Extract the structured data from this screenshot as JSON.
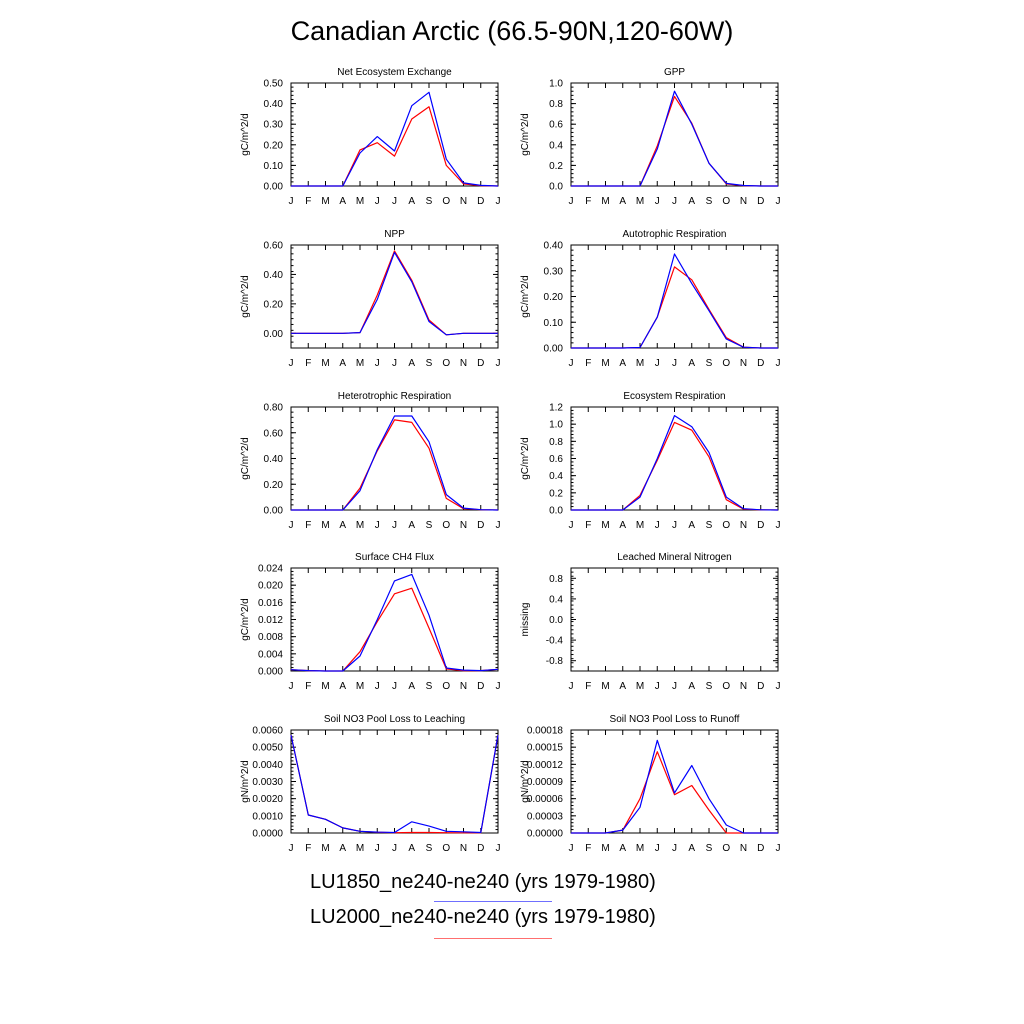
{
  "title": "Canadian Arctic (66.5-90N,120-60W)",
  "months": [
    "J",
    "F",
    "M",
    "A",
    "M",
    "J",
    "J",
    "A",
    "S",
    "O",
    "N",
    "D",
    "J"
  ],
  "colors": {
    "LU1850": "#0000ff",
    "LU2000": "#ff0000"
  },
  "legend": [
    {
      "label": "LU1850_ne240-ne240 (yrs 1979-1980)",
      "color": "#0000ff"
    },
    {
      "label": "LU2000_ne240-ne240 (yrs 1979-1980)",
      "color": "#ff0000"
    }
  ],
  "chart_data": [
    {
      "type": "line",
      "title": "Net Ecosystem Exchange",
      "ylabel": "gC/m^2/d",
      "ylim": [
        0,
        0.5
      ],
      "yticks": [
        "0.00",
        "0.10",
        "0.20",
        "0.30",
        "0.40",
        "0.50"
      ],
      "series": [
        {
          "name": "LU1850_ne240-ne240 (yrs 1979-1980)",
          "values": [
            0,
            0,
            0,
            0,
            0.16,
            0.24,
            0.17,
            0.39,
            0.455,
            0.13,
            0.015,
            0.003,
            0
          ]
        },
        {
          "name": "LU2000_ne240-ne240 (yrs 1979-1980)",
          "values": [
            0,
            0,
            0,
            0,
            0.175,
            0.21,
            0.145,
            0.325,
            0.385,
            0.1,
            0.01,
            0.002,
            0
          ]
        }
      ]
    },
    {
      "type": "line",
      "title": "GPP",
      "ylabel": "gC/m^2/d",
      "ylim": [
        0,
        1.0
      ],
      "yticks": [
        "0.0",
        "0.2",
        "0.4",
        "0.6",
        "0.8",
        "1.0"
      ],
      "series": [
        {
          "name": "LU1850_ne240-ne240 (yrs 1979-1980)",
          "values": [
            0,
            0,
            0,
            0,
            0,
            0.36,
            0.92,
            0.6,
            0.22,
            0.025,
            0.005,
            0,
            0
          ]
        },
        {
          "name": "LU2000_ne240-ne240 (yrs 1979-1980)",
          "values": [
            0,
            0,
            0,
            0,
            0,
            0.39,
            0.87,
            0.61,
            0.22,
            0.02,
            0.004,
            0,
            0
          ]
        }
      ]
    },
    {
      "type": "line",
      "title": "NPP",
      "ylabel": "gC/m^2/d",
      "ylim": [
        -0.1,
        0.6
      ],
      "yticks": [
        "0.00",
        "0.20",
        "0.40",
        "0.60"
      ],
      "ytick_values": [
        0,
        0.2,
        0.4,
        0.6
      ],
      "series": [
        {
          "name": "LU1850_ne240-ne240 (yrs 1979-1980)",
          "values": [
            0,
            0,
            0,
            0,
            0.005,
            0.23,
            0.55,
            0.35,
            0.08,
            -0.01,
            0,
            0,
            0
          ]
        },
        {
          "name": "LU2000_ne240-ne240 (yrs 1979-1980)",
          "values": [
            0,
            0,
            0,
            0,
            0.005,
            0.26,
            0.56,
            0.36,
            0.09,
            -0.01,
            0,
            0,
            0
          ]
        }
      ]
    },
    {
      "type": "line",
      "title": "Autotrophic Respiration",
      "ylabel": "gC/m^2/d",
      "ylim": [
        0,
        0.4
      ],
      "yticks": [
        "0.00",
        "0.10",
        "0.20",
        "0.30",
        "0.40"
      ],
      "series": [
        {
          "name": "LU1850_ne240-ne240 (yrs 1979-1980)",
          "values": [
            0,
            0,
            0,
            0,
            0.002,
            0.12,
            0.365,
            0.25,
            0.145,
            0.035,
            0.003,
            0,
            0
          ]
        },
        {
          "name": "LU2000_ne240-ne240 (yrs 1979-1980)",
          "values": [
            0,
            0,
            0,
            0,
            0.002,
            0.12,
            0.315,
            0.265,
            0.15,
            0.04,
            0.003,
            0,
            0
          ]
        }
      ]
    },
    {
      "type": "line",
      "title": "Heterotrophic Respiration",
      "ylabel": "gC/m^2/d",
      "ylim": [
        0,
        0.8
      ],
      "yticks": [
        "0.00",
        "0.20",
        "0.40",
        "0.60",
        "0.80"
      ],
      "series": [
        {
          "name": "LU1850_ne240-ne240 (yrs 1979-1980)",
          "values": [
            0,
            0,
            0,
            0,
            0.15,
            0.47,
            0.73,
            0.73,
            0.53,
            0.12,
            0.015,
            0.002,
            0
          ]
        },
        {
          "name": "LU2000_ne240-ne240 (yrs 1979-1980)",
          "values": [
            0,
            0,
            0,
            0,
            0.17,
            0.46,
            0.7,
            0.68,
            0.48,
            0.09,
            0.01,
            0.002,
            0
          ]
        }
      ]
    },
    {
      "type": "line",
      "title": "Ecosystem Respiration",
      "ylabel": "gC/m^2/d",
      "ylim": [
        0,
        1.2
      ],
      "yticks": [
        "0.0",
        "0.2",
        "0.4",
        "0.6",
        "0.8",
        "1.0",
        "1.2"
      ],
      "series": [
        {
          "name": "LU1850_ne240-ne240 (yrs 1979-1980)",
          "values": [
            0,
            0,
            0,
            0,
            0.15,
            0.6,
            1.1,
            0.97,
            0.67,
            0.15,
            0.015,
            0.002,
            0
          ]
        },
        {
          "name": "LU2000_ne240-ne240 (yrs 1979-1980)",
          "values": [
            0,
            0,
            0,
            0,
            0.17,
            0.58,
            1.02,
            0.93,
            0.62,
            0.12,
            0.01,
            0.002,
            0
          ]
        }
      ]
    },
    {
      "type": "line",
      "title": "Surface CH4 Flux",
      "ylabel": "gC/m^2/d",
      "ylim": [
        0,
        0.024
      ],
      "yticks": [
        "0.000",
        "0.004",
        "0.008",
        "0.012",
        "0.016",
        "0.020",
        "0.024"
      ],
      "series": [
        {
          "name": "LU1850_ne240-ne240 (yrs 1979-1980)",
          "values": [
            0.0003,
            0.0001,
            0,
            0,
            0.0035,
            0.012,
            0.021,
            0.0225,
            0.013,
            0.0007,
            0.0002,
            0.0001,
            0.0004
          ]
        },
        {
          "name": "LU2000_ne240-ne240 (yrs 1979-1980)",
          "values": [
            0.0003,
            0.0001,
            0,
            0,
            0.0045,
            0.0115,
            0.018,
            0.0193,
            0.01,
            0.0005,
            0.0001,
            0.0001,
            0.0004
          ]
        }
      ]
    },
    {
      "type": "line",
      "title": "Leached Mineral Nitrogen",
      "ylabel": "missing",
      "ylim": [
        -1,
        1
      ],
      "yticks": [
        "-0.8",
        "-0.4",
        "0.0",
        "0.4",
        "0.8"
      ],
      "ytick_values": [
        -0.8,
        -0.4,
        0,
        0.4,
        0.8
      ],
      "series": []
    },
    {
      "type": "line",
      "title": "Soil NO3 Pool Loss to Leaching",
      "ylabel": "gN/m^2/d",
      "ylim": [
        0,
        0.006
      ],
      "yticks": [
        "0.0000",
        "0.0010",
        "0.0020",
        "0.0030",
        "0.0040",
        "0.0050",
        "0.0060"
      ],
      "series": [
        {
          "name": "LU1850_ne240-ne240 (yrs 1979-1980)",
          "values": [
            0.0057,
            0.00105,
            0.0008,
            0.0003,
            0.0001,
            5e-05,
            3e-05,
            0.00065,
            0.0004,
            0.0001,
            7e-05,
            3e-05,
            0.0057
          ]
        },
        {
          "name": "LU2000_ne240-ne240 (yrs 1979-1980)",
          "values": [
            0.0057,
            0.00105,
            0.0008,
            0.0003,
            0.0001,
            4e-05,
            2e-05,
            3e-05,
            3e-05,
            2e-05,
            1e-05,
            1e-05,
            0.0057
          ]
        }
      ]
    },
    {
      "type": "line",
      "title": "Soil NO3 Pool Loss to Runoff",
      "ylabel": "gN/m^2/d",
      "ylim": [
        0,
        0.00018
      ],
      "yticks": [
        "0.00000",
        "0.00003",
        "0.00006",
        "0.00009",
        "0.00012",
        "0.00015",
        "0.00018"
      ],
      "series": [
        {
          "name": "LU1850_ne240-ne240 (yrs 1979-1980)",
          "values": [
            0,
            0,
            0,
            5e-06,
            4.5e-05,
            0.000162,
            7e-05,
            0.000118,
            6e-05,
            1.4e-05,
            0,
            0,
            0
          ]
        },
        {
          "name": "LU2000_ne240-ne240 (yrs 1979-1980)",
          "values": [
            0,
            0,
            0,
            5e-06,
            6e-05,
            0.000142,
            6.7e-05,
            8.3e-05,
            4e-05,
            0,
            0,
            0,
            0
          ]
        }
      ]
    }
  ]
}
